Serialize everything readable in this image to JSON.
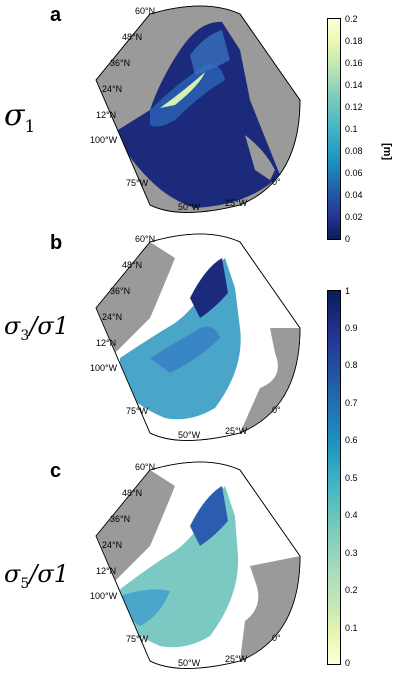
{
  "panels": [
    {
      "letter": "a",
      "label_main": "σ",
      "label_sub": "1",
      "label_tail": "",
      "lat_labels": [
        "60°N",
        "48°N",
        "36°N",
        "24°N",
        "12°N"
      ],
      "lon_labels": [
        "100°W",
        "75°W",
        "50°W",
        "25°W",
        "0°"
      ],
      "colormap": "YlGnBu"
    },
    {
      "letter": "b",
      "label_main": "σ",
      "label_sub": "3",
      "label_tail": "/σ1",
      "lat_labels": [
        "60°N",
        "48°N",
        "36°N",
        "24°N",
        "12°N"
      ],
      "lon_labels": [
        "100°W",
        "75°W",
        "50°W",
        "25°W",
        "0°"
      ],
      "colormap": "YlGnBu"
    },
    {
      "letter": "c",
      "label_main": "σ",
      "label_sub": "5",
      "label_tail": "/σ1",
      "lat_labels": [
        "60°N",
        "48°N",
        "36°N",
        "24°N",
        "12°N"
      ],
      "lon_labels": [
        "100°W",
        "75°W",
        "50°W",
        "25°W",
        "0°"
      ],
      "colormap": "YlGnBu"
    }
  ],
  "colorbars": [
    {
      "ticks": [
        "0.2",
        "0.18",
        "0.16",
        "0.14",
        "0.12",
        "0.1",
        "0.08",
        "0.06",
        "0.04",
        "0.02",
        "0"
      ],
      "unit": "[m]",
      "range": [
        0,
        0.2
      ]
    },
    {
      "ticks": [
        "1",
        "0.9",
        "0.8",
        "0.7",
        "0.6",
        "0.5",
        "0.4",
        "0.3",
        "0.2",
        "0.1",
        "0"
      ],
      "unit": "",
      "range": [
        0,
        1
      ]
    }
  ],
  "colors": {
    "land": "#9a9a9a",
    "ocean_deep": "#1b2a7a",
    "ocean_mid": "#2a5db0",
    "ocean_light": "#4aa6c8",
    "ocean_pale": "#7cc9c4",
    "highlight": "#d8efb3"
  }
}
